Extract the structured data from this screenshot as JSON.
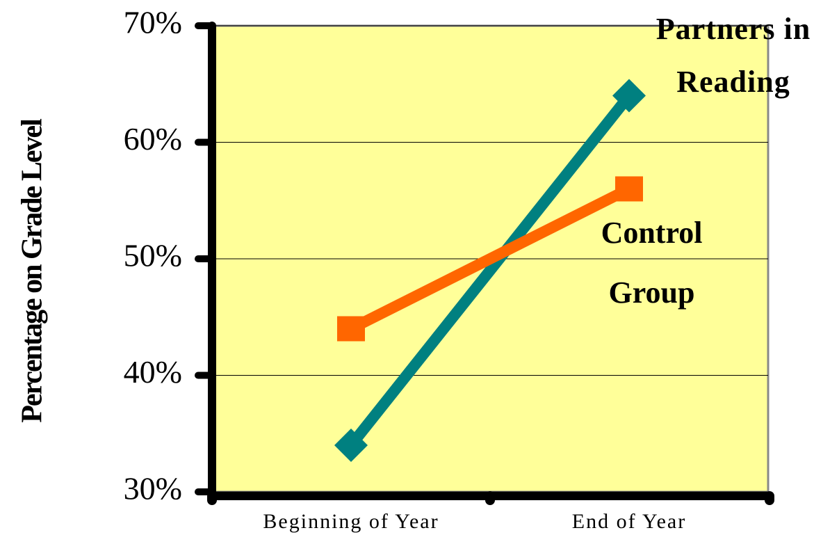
{
  "chart_data": {
    "type": "line",
    "y_label": "Percentage on Grade Level",
    "categories": [
      "Beginning of Year",
      "End of Year"
    ],
    "series": [
      {
        "name": "Partners in Reading",
        "color": "#008080",
        "marker": "diamond",
        "values": [
          34,
          64
        ]
      },
      {
        "name": "Control Group",
        "color": "#ff6600",
        "marker": "square",
        "values": [
          44,
          56
        ]
      }
    ],
    "ylim": [
      30,
      70
    ],
    "yticks": [
      {
        "value": 30,
        "label": "30%"
      },
      {
        "value": 40,
        "label": "40%"
      },
      {
        "value": 50,
        "label": "50%"
      },
      {
        "value": 60,
        "label": "60%"
      },
      {
        "value": 70,
        "label": "70%"
      }
    ],
    "grid": true,
    "plot_background": "#ffff99"
  }
}
